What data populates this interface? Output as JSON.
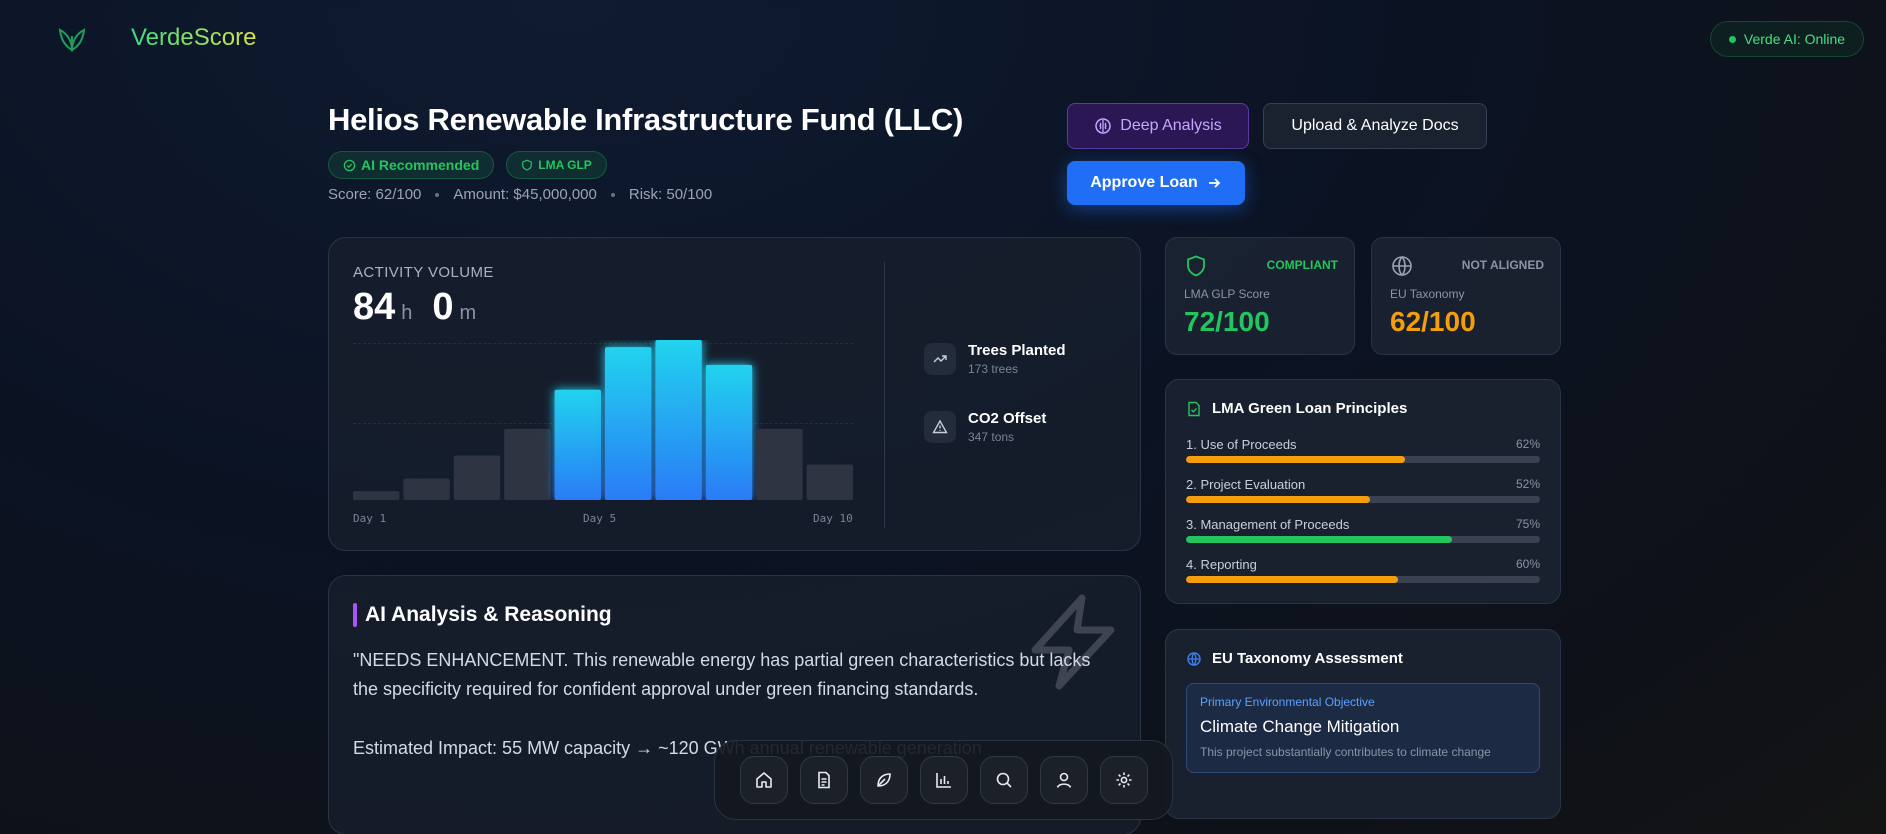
{
  "app": {
    "brand": "VerdeScore",
    "status": "Verde AI: Online"
  },
  "header": {
    "title": "Helios Renewable Infrastructure Fund (LLC)",
    "badges": [
      "AI Recommended",
      "LMA GLP"
    ],
    "meta": {
      "score": "Score: 62/100",
      "amount": "Amount: $45,000,000",
      "risk": "Risk: 50/100"
    }
  },
  "actions": {
    "deep_analysis": "Deep Analysis",
    "upload": "Upload & Analyze Docs",
    "approve": "Approve Loan"
  },
  "activity": {
    "label": "ACTIVITY VOLUME",
    "hours": "84",
    "hours_unit": "h",
    "minutes": "0",
    "minutes_unit": "m",
    "day_labels": [
      "Day 1",
      "Day 5",
      "Day 10"
    ],
    "bars": [
      5,
      12,
      25,
      40,
      62,
      86,
      90,
      76,
      40,
      20
    ],
    "bars_max": 90,
    "highlight": [
      4,
      5,
      6,
      7
    ],
    "stats": [
      {
        "icon": "trending-up-icon",
        "title": "Trees Planted",
        "sub": "173 trees"
      },
      {
        "icon": "warning-icon",
        "title": "CO2 Offset",
        "sub": "347 tons"
      }
    ]
  },
  "scores": {
    "glp": {
      "tag": "COMPLIANT",
      "label": "LMA GLP Score",
      "value": "72/100",
      "color": "#22c55e"
    },
    "eu": {
      "tag": "NOT ALIGNED",
      "label": "EU Taxonomy",
      "value": "62/100",
      "color": "#f59e0b"
    }
  },
  "lma": {
    "title": "LMA Green Loan Principles",
    "principles": [
      {
        "label": "1. Use of Proceeds",
        "pct_text": "62%",
        "value": 62,
        "color": "#f59e0b"
      },
      {
        "label": "2. Project Evaluation",
        "pct_text": "52%",
        "value": 52,
        "color": "#f59e0b"
      },
      {
        "label": "3. Management of Proceeds",
        "pct_text": "75%",
        "value": 75,
        "color": "#22c55e"
      },
      {
        "label": "4. Reporting",
        "pct_text": "60%",
        "value": 60,
        "color": "#f59e0b"
      }
    ]
  },
  "eu_taxonomy": {
    "title": "EU Taxonomy Assessment",
    "objective_label": "Primary Environmental Objective",
    "objective": "Climate Change Mitigation",
    "description": "This project substantially contributes to climate change"
  },
  "ai": {
    "title": "AI Analysis & Reasoning",
    "paragraph1": "\"NEEDS ENHANCEMENT. This renewable energy has partial green characteristics but lacks the specificity required for confident approval under green financing standards.",
    "paragraph2": "Estimated Impact: 55 MW capacity → ~120 GWh annual renewable generation"
  },
  "dock": [
    "home-icon",
    "document-icon",
    "leaf-icon",
    "bar-chart-icon",
    "search-icon",
    "user-icon",
    "settings-icon"
  ]
}
